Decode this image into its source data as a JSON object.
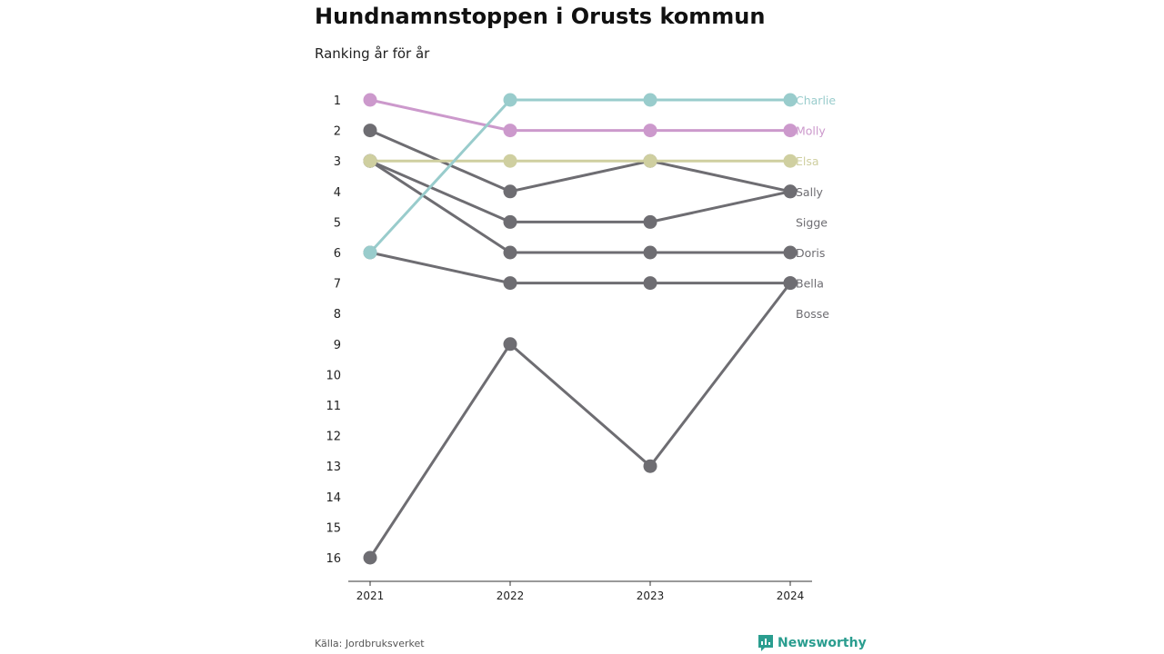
{
  "page": {
    "title": "Hundnamnstoppen i Orusts kommun",
    "subtitle": "Ranking år för år",
    "source": "Källa: Jordbruksverket",
    "brand": "Newsworthy"
  },
  "chart_data": {
    "type": "line",
    "title": "Hundnamnstoppen i Orusts kommun",
    "subtitle": "Ranking år för år",
    "x": [
      "2021",
      "2022",
      "2023",
      "2024"
    ],
    "y_ticks": [
      "1",
      "2",
      "3",
      "4",
      "5",
      "6",
      "7",
      "8",
      "9",
      "10",
      "11",
      "12",
      "13",
      "14",
      "15",
      "16"
    ],
    "ylim": [
      1,
      16
    ],
    "y_reversed": true,
    "grid": false,
    "series": [
      {
        "name": "Bosse",
        "values": [
          3,
          6,
          6,
          6
        ],
        "color": "#6e6d72",
        "label_rank": 8
      },
      {
        "name": "Bella",
        "values": [
          16,
          9,
          13,
          7
        ],
        "color": "#6e6d72",
        "label_rank": 7
      },
      {
        "name": "Doris",
        "values": [
          6,
          7,
          7,
          7
        ],
        "color": "#6e6d72",
        "label_rank": 6
      },
      {
        "name": "Sigge",
        "values": [
          3,
          5,
          5,
          4
        ],
        "color": "#6e6d72",
        "label_rank": 5
      },
      {
        "name": "Sally",
        "values": [
          2,
          4,
          3,
          4
        ],
        "color": "#6e6d72",
        "label_rank": 4
      },
      {
        "name": "Elsa",
        "values": [
          3,
          3,
          3,
          3
        ],
        "color": "#cfcfa0",
        "label_rank": 3
      },
      {
        "name": "Molly",
        "values": [
          1,
          2,
          2,
          2
        ],
        "color": "#cc99cc",
        "label_rank": 2
      },
      {
        "name": "Charlie",
        "values": [
          6,
          1,
          1,
          1
        ],
        "color": "#99cccc",
        "label_rank": 1
      }
    ],
    "tick_color": "#222222",
    "axis_color": "#333333",
    "brand_color": "#2a9d8f"
  }
}
